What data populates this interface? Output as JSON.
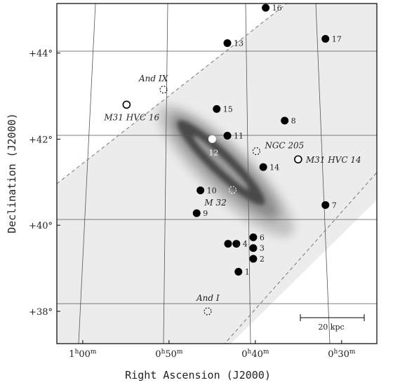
{
  "chart_data": {
    "type": "scatter",
    "title": "",
    "xlabel": "Right Ascension (J2000)",
    "ylabel": "Declination (J2000)",
    "x_ticks": [
      {
        "value": 15.0,
        "h": "1",
        "hs": "h",
        "m": "00",
        "ms": "m"
      },
      {
        "value": 12.5,
        "h": "0",
        "hs": "h",
        "m": "50",
        "ms": "m"
      },
      {
        "value": 10.0,
        "h": "0",
        "hs": "h",
        "m": "40",
        "ms": "m"
      },
      {
        "value": 7.5,
        "h": "0",
        "hs": "h",
        "m": "30",
        "ms": "m"
      }
    ],
    "y_ticks": [
      {
        "value": 38,
        "label": "+38°"
      },
      {
        "value": 40,
        "label": "+40°"
      },
      {
        "value": 42,
        "label": "+42°"
      },
      {
        "value": 44,
        "label": "+44°"
      }
    ],
    "xlim": [
      15.75,
      6.48
    ],
    "ylim": [
      37.25,
      45.15
    ],
    "grid": true,
    "scale_bar_label": "20 kpc",
    "points": [
      {
        "label": "1",
        "x": 10.49,
        "y": 38.92
      },
      {
        "label": "2",
        "x": 10.06,
        "y": 39.22
      },
      {
        "label": "3",
        "x": 10.06,
        "y": 39.47
      },
      {
        "label": "4",
        "x": 10.55,
        "y": 39.57
      },
      {
        "label": "5",
        "x": 10.79,
        "y": 39.57
      },
      {
        "label": "6",
        "x": 10.06,
        "y": 39.72
      },
      {
        "label": "7",
        "x": 7.97,
        "y": 40.47
      },
      {
        "label": "8",
        "x": 9.15,
        "y": 42.43
      },
      {
        "label": "9",
        "x": 11.7,
        "y": 40.28
      },
      {
        "label": "10",
        "x": 11.59,
        "y": 40.81
      },
      {
        "label": "11",
        "x": 10.81,
        "y": 42.08
      },
      {
        "label": "13",
        "x": 10.81,
        "y": 44.23
      },
      {
        "label": "14",
        "x": 9.77,
        "y": 41.35
      },
      {
        "label": "15",
        "x": 11.12,
        "y": 42.7
      },
      {
        "label": "16",
        "x": 9.7,
        "y": 45.05
      },
      {
        "label": "17",
        "x": 7.97,
        "y": 44.33
      }
    ],
    "highlight_points": [
      {
        "label": "12",
        "x": 11.25,
        "y": 42.0
      }
    ],
    "hvc_circles": [
      {
        "label": "M31 HVC 16",
        "x": 13.73,
        "y": 42.8
      },
      {
        "label": "M31 HVC 14",
        "x": 8.76,
        "y": 41.53
      }
    ],
    "satellites_dashed": [
      {
        "label": "And IX",
        "x": 12.66,
        "y": 43.15
      },
      {
        "label": "NGC 205",
        "x": 9.97,
        "y": 41.72
      },
      {
        "label": "M 32",
        "x": 10.66,
        "y": 40.82
      },
      {
        "label": "And I",
        "x": 11.38,
        "y": 38.0
      }
    ]
  }
}
